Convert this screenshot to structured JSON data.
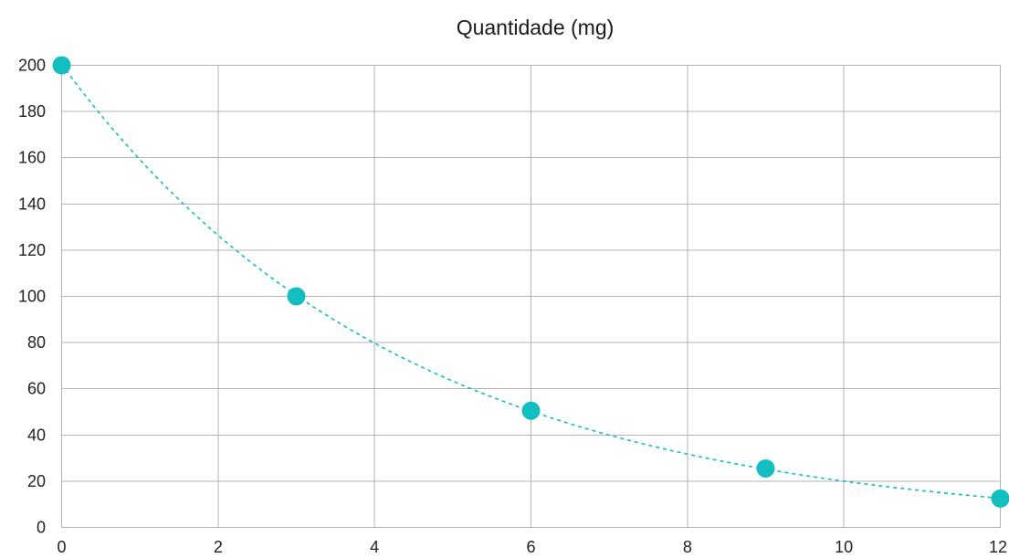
{
  "chart_data": {
    "type": "scatter",
    "title": "Quantidade (mg)",
    "xlabel": "",
    "ylabel": "",
    "xlim": [
      0,
      12
    ],
    "ylim": [
      0,
      200
    ],
    "x_ticks": [
      0,
      2,
      4,
      6,
      8,
      10,
      12
    ],
    "y_ticks": [
      0,
      20,
      40,
      60,
      80,
      100,
      120,
      140,
      160,
      180,
      200
    ],
    "grid": true,
    "legend": "none",
    "series": [
      {
        "x": [
          0,
          3,
          6,
          9,
          12
        ],
        "y": [
          200,
          100,
          50.5,
          25.5,
          12.5
        ],
        "color": "#13bec0",
        "trendline": "exponential",
        "trendline_style": "dashed"
      }
    ]
  }
}
